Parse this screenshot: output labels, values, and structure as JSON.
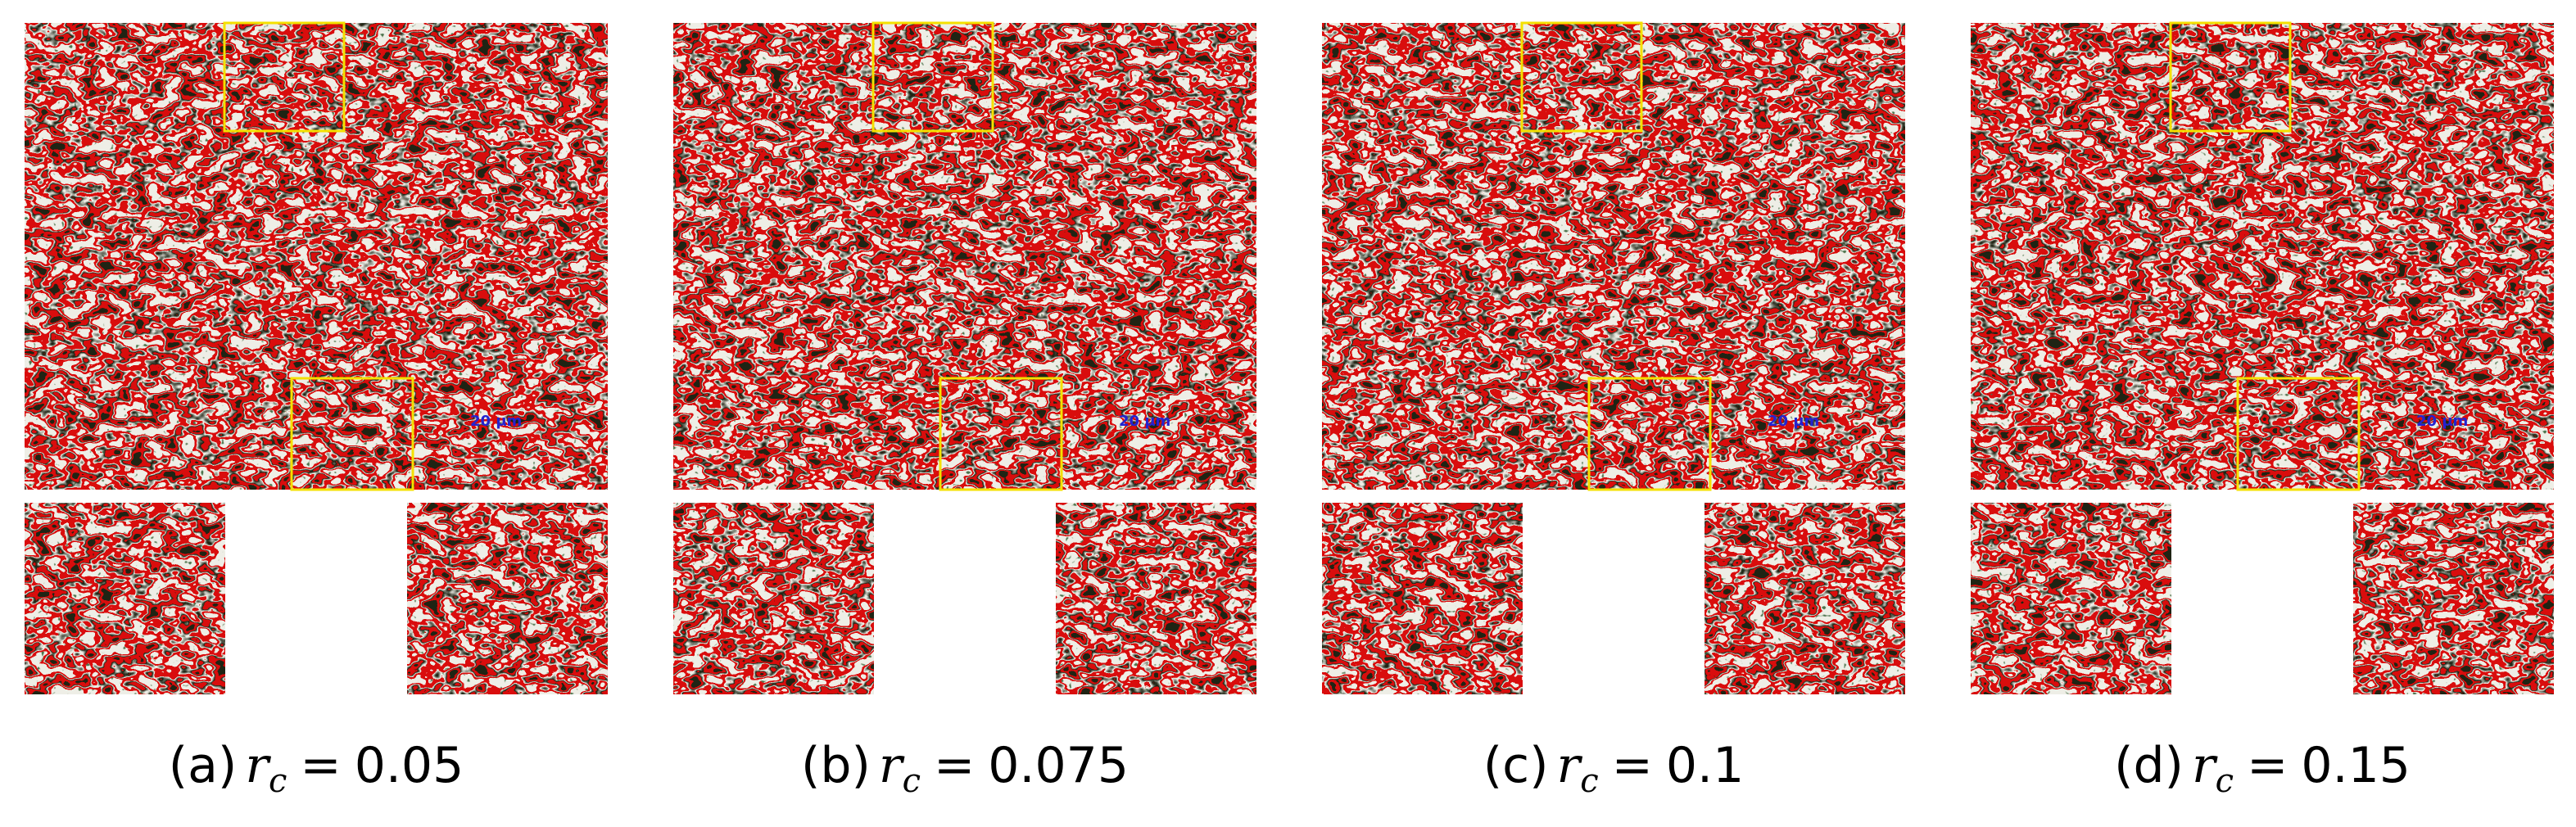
{
  "figure": {
    "caption_symbol": "r",
    "caption_subscript": "c",
    "caption_operator": "=",
    "panels": [
      {
        "tag": "(a)",
        "value": "0.05",
        "scale_bar": "20 μm"
      },
      {
        "tag": "(b)",
        "value": "0.075",
        "scale_bar": "20 μm"
      },
      {
        "tag": "(c)",
        "value": "0.1",
        "scale_bar": "20 μm"
      },
      {
        "tag": "(d)",
        "value": "0.15",
        "scale_bar": "20 μm"
      }
    ]
  }
}
